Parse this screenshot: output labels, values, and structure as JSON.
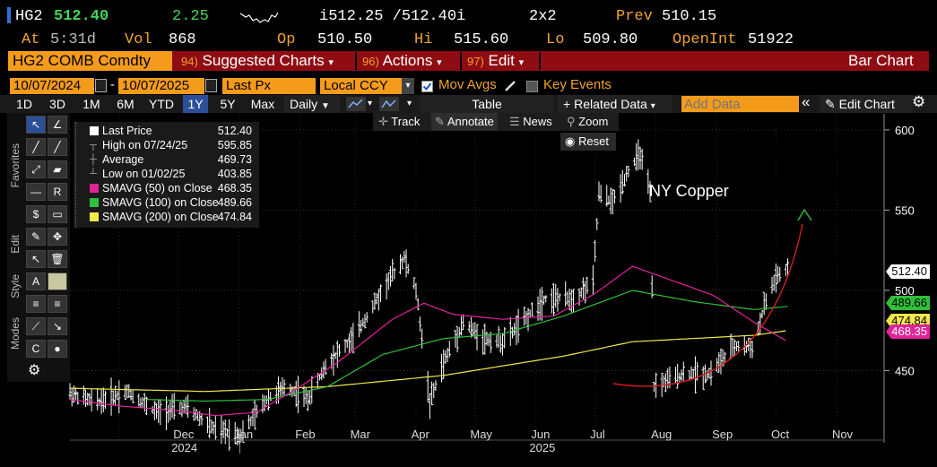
{
  "header": {
    "ticker": "HG2",
    "last": "512.40",
    "change": "2.25",
    "bid_ask": "i512.25 /512.40i",
    "size": "2x2",
    "prev_label": "Prev",
    "prev": "510.15",
    "at_label": "At",
    "at": "5:31d",
    "vol_label": "Vol",
    "vol": "868",
    "op_label": "Op",
    "op": "510.50",
    "hi_label": "Hi",
    "hi": "515.60",
    "lo_label": "Lo",
    "lo": "509.80",
    "oi_label": "OpenInt",
    "oi": "51922"
  },
  "toolbar": {
    "security": "HG2 COMB Comdty",
    "suggested_num": "94)",
    "suggested": "Suggested Charts",
    "actions_num": "96)",
    "actions": "Actions",
    "edit_num": "97)",
    "edit": "Edit",
    "chart_type": "Bar Chart"
  },
  "controls": {
    "start_date": "10/07/2024",
    "end_date": "10/07/2025",
    "field": "Last Px",
    "currency": "Local CCY",
    "mov_avgs": "Mov Avgs",
    "key_events": "Key Events"
  },
  "periods": [
    "1D",
    "3D",
    "1M",
    "6M",
    "YTD",
    "1Y",
    "5Y",
    "Max"
  ],
  "active_period": "1Y",
  "freq": "Daily",
  "table_btn": "Table",
  "related_data": "Related Data",
  "add_data_placeholder": "Add Data",
  "edit_chart": "Edit Chart",
  "plot_tools": {
    "track": "Track",
    "annotate": "Annotate",
    "news": "News",
    "zoom": "Zoom",
    "reset": "Reset"
  },
  "side_labels": {
    "favorites": "Favorites",
    "edit": "Edit",
    "style": "Style",
    "modes": "Modes"
  },
  "legend": [
    {
      "name": "Last Price",
      "value": "512.40",
      "color": "#ffffff",
      "icon": "square"
    },
    {
      "name": "High on 07/24/25",
      "value": "595.85",
      "color": "#aaaaaa",
      "icon": "high-marker"
    },
    {
      "name": "Average",
      "value": "469.73",
      "color": "#aaaaaa",
      "icon": "average-marker"
    },
    {
      "name": "Low on 01/02/25",
      "value": "403.85",
      "color": "#aaaaaa",
      "icon": "low-marker"
    },
    {
      "name": "SMAVG (50)  on Close",
      "value": "468.35",
      "color": "#e0239a",
      "icon": "square"
    },
    {
      "name": "SMAVG (100)  on Close",
      "value": "489.66",
      "color": "#2fbf3a",
      "icon": "square"
    },
    {
      "name": "SMAVG (200)  on Close",
      "value": "474.84",
      "color": "#f2e84a",
      "icon": "square"
    }
  ],
  "annotation": "NY Copper",
  "chart_data": {
    "type": "bar",
    "ylim": [
      405,
      610
    ],
    "yticks": [
      450,
      500,
      550,
      600
    ],
    "x_month_labels": [
      "Dec",
      "Jan",
      "Feb",
      "Mar",
      "Apr",
      "May",
      "Jun",
      "Jul",
      "Aug",
      "Sep",
      "Oct",
      "Nov"
    ],
    "x_year_labels": [
      "2024",
      "2025"
    ],
    "price_tags": [
      {
        "value": "512.40",
        "bg": "#ffffff",
        "fg": "#000000"
      },
      {
        "value": "489.66",
        "bg": "#2fbf3a",
        "fg": "#000000"
      },
      {
        "value": "474.84",
        "bg": "#f2e84a",
        "fg": "#000000"
      },
      {
        "value": "468.35",
        "bg": "#e0239a",
        "fg": "#ffffff"
      }
    ],
    "price_anchors": [
      [
        "2024-10-07",
        436
      ],
      [
        "2024-10-20",
        430
      ],
      [
        "2024-11-05",
        437
      ],
      [
        "2024-11-20",
        424
      ],
      [
        "2024-12-05",
        427
      ],
      [
        "2024-12-20",
        413
      ],
      [
        "2025-01-02",
        410
      ],
      [
        "2025-01-15",
        432
      ],
      [
        "2025-01-25",
        440
      ],
      [
        "2025-02-05",
        432
      ],
      [
        "2025-02-15",
        455
      ],
      [
        "2025-02-28",
        470
      ],
      [
        "2025-03-10",
        490
      ],
      [
        "2025-03-20",
        510
      ],
      [
        "2025-03-26",
        520
      ],
      [
        "2025-04-01",
        500
      ],
      [
        "2025-04-08",
        430
      ],
      [
        "2025-04-15",
        455
      ],
      [
        "2025-04-25",
        480
      ],
      [
        "2025-05-05",
        470
      ],
      [
        "2025-05-15",
        468
      ],
      [
        "2025-05-25",
        480
      ],
      [
        "2025-06-05",
        495
      ],
      [
        "2025-06-20",
        495
      ],
      [
        "2025-06-30",
        505
      ],
      [
        "2025-07-03",
        560
      ],
      [
        "2025-07-10",
        555
      ],
      [
        "2025-07-18",
        575
      ],
      [
        "2025-07-24",
        585
      ],
      [
        "2025-07-29",
        560
      ],
      [
        "2025-07-31",
        440
      ],
      [
        "2025-08-15",
        448
      ],
      [
        "2025-08-28",
        448
      ],
      [
        "2025-09-10",
        465
      ],
      [
        "2025-09-20",
        465
      ],
      [
        "2025-09-25",
        490
      ],
      [
        "2025-10-01",
        508
      ],
      [
        "2025-10-07",
        512
      ]
    ],
    "sma50_anchors": [
      [
        "2024-10-07",
        432
      ],
      [
        "2024-11-01",
        428
      ],
      [
        "2024-12-01",
        425
      ],
      [
        "2024-12-20",
        422
      ],
      [
        "2025-01-10",
        424
      ],
      [
        "2025-02-01",
        440
      ],
      [
        "2025-02-20",
        455
      ],
      [
        "2025-03-20",
        482
      ],
      [
        "2025-04-05",
        492
      ],
      [
        "2025-04-20",
        485
      ],
      [
        "2025-05-15",
        482
      ],
      [
        "2025-06-10",
        484
      ],
      [
        "2025-07-01",
        498
      ],
      [
        "2025-07-20",
        515
      ],
      [
        "2025-08-05",
        508
      ],
      [
        "2025-08-30",
        497
      ],
      [
        "2025-09-20",
        480
      ],
      [
        "2025-10-07",
        468
      ]
    ],
    "sma100_anchors": [
      [
        "2024-11-15",
        432
      ],
      [
        "2024-12-15",
        431
      ],
      [
        "2025-01-15",
        432
      ],
      [
        "2025-02-15",
        440
      ],
      [
        "2025-03-15",
        460
      ],
      [
        "2025-04-15",
        470
      ],
      [
        "2025-05-15",
        473
      ],
      [
        "2025-06-15",
        484
      ],
      [
        "2025-07-20",
        500
      ],
      [
        "2025-08-20",
        493
      ],
      [
        "2025-09-20",
        488
      ],
      [
        "2025-10-07",
        490
      ]
    ],
    "sma200_anchors": [
      [
        "2024-10-07",
        439
      ],
      [
        "2024-12-15",
        437
      ],
      [
        "2025-02-15",
        440
      ],
      [
        "2025-04-15",
        447
      ],
      [
        "2025-06-15",
        459
      ],
      [
        "2025-07-20",
        468
      ],
      [
        "2025-08-20",
        470
      ],
      [
        "2025-09-20",
        472
      ],
      [
        "2025-10-07",
        475
      ]
    ]
  }
}
